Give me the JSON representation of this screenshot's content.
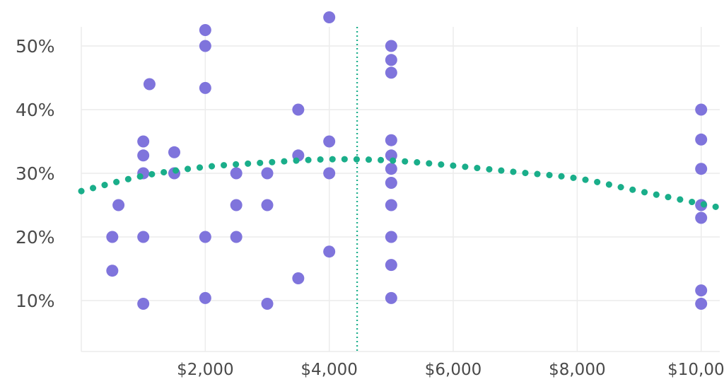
{
  "chart_data": {
    "type": "scatter",
    "title": "",
    "xlabel": "",
    "ylabel": "",
    "xlim": [
      0,
      10300
    ],
    "ylim": [
      2,
      55
    ],
    "x_ticks": [
      {
        "value": 2000,
        "label": "$2,000"
      },
      {
        "value": 4000,
        "label": "$4,000"
      },
      {
        "value": 6000,
        "label": "$6,000"
      },
      {
        "value": 8000,
        "label": "$8,000"
      },
      {
        "value": 10000,
        "label": "$10,000"
      }
    ],
    "y_ticks": [
      {
        "value": 10,
        "label": "10%"
      },
      {
        "value": 20,
        "label": "20%"
      },
      {
        "value": 30,
        "label": "30%"
      },
      {
        "value": 40,
        "label": "40%"
      },
      {
        "value": 50,
        "label": "50%"
      }
    ],
    "grid": true,
    "colors": {
      "points": "#7f74dc",
      "trend": "#1aae8a",
      "reference_line": "#1aae8a",
      "grid": "#ececec"
    },
    "points": [
      {
        "x": 500,
        "y": 20
      },
      {
        "x": 500,
        "y": 14.7
      },
      {
        "x": 600,
        "y": 25
      },
      {
        "x": 1000,
        "y": 35
      },
      {
        "x": 1000,
        "y": 32.8
      },
      {
        "x": 1000,
        "y": 30
      },
      {
        "x": 1000,
        "y": 20
      },
      {
        "x": 1000,
        "y": 9.5
      },
      {
        "x": 1100,
        "y": 44
      },
      {
        "x": 1500,
        "y": 33.3
      },
      {
        "x": 1500,
        "y": 30
      },
      {
        "x": 2000,
        "y": 52.5
      },
      {
        "x": 2000,
        "y": 50
      },
      {
        "x": 2000,
        "y": 43.4
      },
      {
        "x": 2000,
        "y": 20
      },
      {
        "x": 2000,
        "y": 10.4
      },
      {
        "x": 2500,
        "y": 30
      },
      {
        "x": 2500,
        "y": 25
      },
      {
        "x": 2500,
        "y": 20
      },
      {
        "x": 3000,
        "y": 30
      },
      {
        "x": 3000,
        "y": 25
      },
      {
        "x": 3000,
        "y": 9.5
      },
      {
        "x": 3500,
        "y": 40
      },
      {
        "x": 3500,
        "y": 32.8
      },
      {
        "x": 3500,
        "y": 13.5
      },
      {
        "x": 4000,
        "y": 54.5
      },
      {
        "x": 4000,
        "y": 35
      },
      {
        "x": 4000,
        "y": 30
      },
      {
        "x": 4000,
        "y": 17.7
      },
      {
        "x": 5000,
        "y": 50
      },
      {
        "x": 5000,
        "y": 47.8
      },
      {
        "x": 5000,
        "y": 45.8
      },
      {
        "x": 5000,
        "y": 35.2
      },
      {
        "x": 5000,
        "y": 32.8
      },
      {
        "x": 5000,
        "y": 30.7
      },
      {
        "x": 5000,
        "y": 28.5
      },
      {
        "x": 5000,
        "y": 25
      },
      {
        "x": 5000,
        "y": 20
      },
      {
        "x": 5000,
        "y": 15.6
      },
      {
        "x": 5000,
        "y": 10.4
      },
      {
        "x": 10000,
        "y": 40
      },
      {
        "x": 10000,
        "y": 35.3
      },
      {
        "x": 10000,
        "y": 30.7
      },
      {
        "x": 10000,
        "y": 25
      },
      {
        "x": 10000,
        "y": 23
      },
      {
        "x": 10000,
        "y": 11.6
      },
      {
        "x": 10000,
        "y": 9.5
      }
    ],
    "trend": {
      "style": "dotted",
      "points": [
        {
          "x": 0,
          "y": 27.2
        },
        {
          "x": 1000,
          "y": 29.6
        },
        {
          "x": 2000,
          "y": 31.0
        },
        {
          "x": 3000,
          "y": 31.7
        },
        {
          "x": 4000,
          "y": 32.2
        },
        {
          "x": 5000,
          "y": 32.0
        },
        {
          "x": 6000,
          "y": 31.2
        },
        {
          "x": 7000,
          "y": 30.2
        },
        {
          "x": 8000,
          "y": 29.2
        },
        {
          "x": 9000,
          "y": 27.2
        },
        {
          "x": 10300,
          "y": 24.6
        }
      ]
    },
    "reference_line": {
      "x": 4450,
      "style": "dotted"
    }
  }
}
